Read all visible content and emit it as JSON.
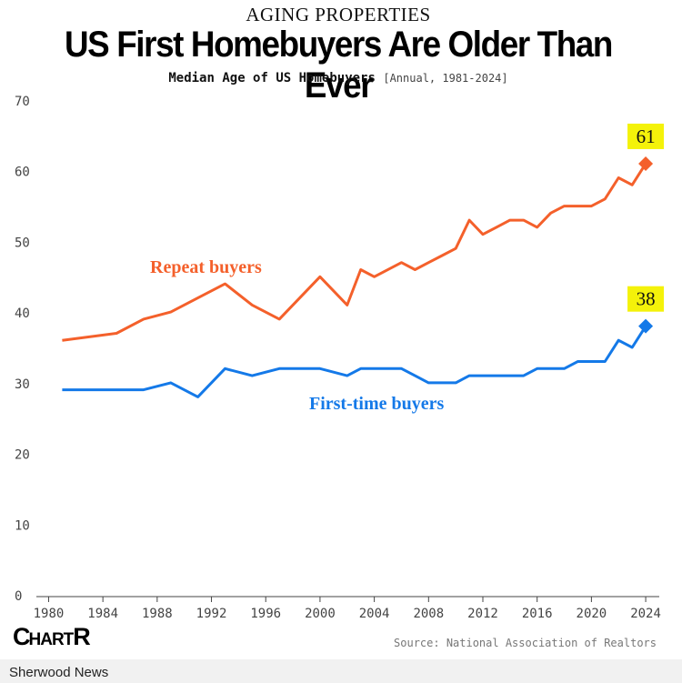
{
  "header": {
    "kicker": "AGING PROPERTIES",
    "title": "US First Homebuyers Are Older Than Ever",
    "subtitle_bold": "Median Age of US Homebuyers",
    "subtitle_note": "[Annual, 1981-2024]"
  },
  "source": "Source: National Association of Realtors",
  "brand": {
    "logo_big1": "C",
    "logo_mid": "HART",
    "logo_big2": "R",
    "publisher": "Sherwood News"
  },
  "colors": {
    "repeat": "#f4602b",
    "first_time": "#1479e8",
    "highlight": "#f4f20a",
    "axis_text": "#444444",
    "grid": "#dddddd"
  },
  "chart_data": {
    "type": "line",
    "title": "Median Age of US Homebuyers",
    "xlabel": "",
    "ylabel": "",
    "xlim": [
      1979.5,
      2025
    ],
    "ylim": [
      0,
      70
    ],
    "x_ticks": [
      1980,
      1984,
      1988,
      1992,
      1996,
      2000,
      2004,
      2008,
      2012,
      2016,
      2020,
      2024
    ],
    "y_ticks": [
      0,
      10,
      20,
      30,
      40,
      50,
      60,
      70
    ],
    "grid": false,
    "series": [
      {
        "name": "Repeat buyers",
        "color": "#f4602b",
        "x": [
          1981,
          1985,
          1987,
          1989,
          1991,
          1993,
          1995,
          1997,
          2000,
          2002,
          2003,
          2004,
          2006,
          2007,
          2008,
          2009,
          2010,
          2011,
          2012,
          2013,
          2014,
          2015,
          2016,
          2017,
          2018,
          2019,
          2020,
          2021,
          2022,
          2023,
          2024
        ],
        "values": [
          36,
          37,
          39,
          40,
          42,
          44,
          41,
          39,
          45,
          41,
          46,
          45,
          47,
          46,
          47,
          48,
          49,
          53,
          51,
          52,
          53,
          53,
          52,
          54,
          55,
          55,
          55,
          56,
          59,
          58,
          61
        ],
        "end_label": "61"
      },
      {
        "name": "First-time buyers",
        "color": "#1479e8",
        "x": [
          1981,
          1985,
          1987,
          1989,
          1991,
          1993,
          1995,
          1997,
          2000,
          2002,
          2003,
          2004,
          2006,
          2007,
          2008,
          2009,
          2010,
          2011,
          2012,
          2013,
          2014,
          2015,
          2016,
          2017,
          2018,
          2019,
          2020,
          2021,
          2022,
          2023,
          2024
        ],
        "values": [
          29,
          29,
          29,
          30,
          28,
          32,
          31,
          32,
          32,
          31,
          32,
          32,
          32,
          31,
          30,
          30,
          30,
          31,
          31,
          31,
          31,
          31,
          32,
          32,
          32,
          33,
          33,
          33,
          36,
          35,
          38
        ],
        "end_label": "38"
      }
    ]
  }
}
